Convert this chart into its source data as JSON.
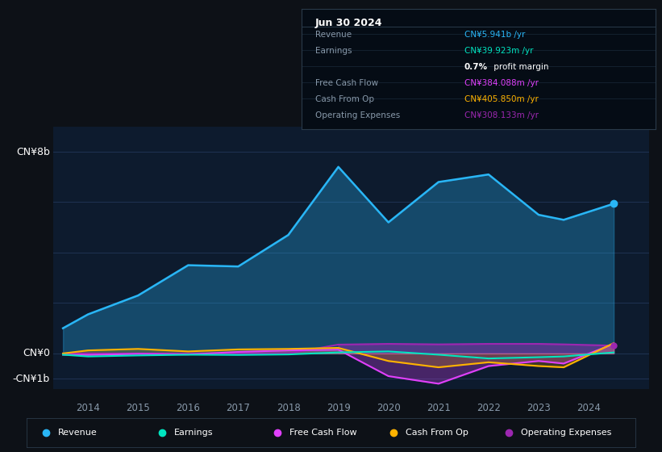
{
  "bg_color": "#0d1117",
  "plot_bg_color": "#0d1b2e",
  "grid_color": "#1e3050",
  "title_box_date": "Jun 30 2024",
  "ylabel_top": "CN¥8b",
  "ylabel_mid": "CN¥0",
  "ylabel_bot": "-CN¥1b",
  "xlabels": [
    "2014",
    "2015",
    "2016",
    "2017",
    "2018",
    "2019",
    "2020",
    "2021",
    "2022",
    "2023",
    "2024"
  ],
  "ylim": [
    -1400000000.0,
    9000000000.0
  ],
  "revenue": [
    1000000000.0,
    1550000000.0,
    2300000000.0,
    3500000000.0,
    3450000000.0,
    4700000000.0,
    7400000000.0,
    5200000000.0,
    6800000000.0,
    7100000000.0,
    5500000000.0,
    5300000000.0,
    5940000000.0
  ],
  "earnings": [
    -50000000.0,
    -120000000.0,
    -80000000.0,
    -50000000.0,
    -60000000.0,
    -40000000.0,
    40000000.0,
    80000000.0,
    -50000000.0,
    -200000000.0,
    -150000000.0,
    -120000000.0,
    40000000.0
  ],
  "free_cash_flow": [
    -50000000.0,
    -60000000.0,
    -20000000.0,
    -40000000.0,
    60000000.0,
    120000000.0,
    150000000.0,
    -900000000.0,
    -1200000000.0,
    -500000000.0,
    -300000000.0,
    -400000000.0,
    380000000.0
  ],
  "cash_from_op": [
    0.0,
    120000000.0,
    180000000.0,
    80000000.0,
    160000000.0,
    180000000.0,
    220000000.0,
    -300000000.0,
    -550000000.0,
    -350000000.0,
    -500000000.0,
    -550000000.0,
    410000000.0
  ],
  "op_expenses": [
    0.0,
    0.0,
    0.0,
    0.0,
    0.0,
    0.0,
    350000000.0,
    380000000.0,
    360000000.0,
    380000000.0,
    380000000.0,
    360000000.0,
    310000000.0
  ],
  "time_points": [
    2013.5,
    2014.0,
    2015.0,
    2016.0,
    2017.0,
    2018.0,
    2019.0,
    2020.0,
    2021.0,
    2022.0,
    2023.0,
    2023.5,
    2024.5
  ],
  "revenue_color": "#29b6f6",
  "earnings_color": "#00e5c0",
  "fcf_color": "#e040fb",
  "cfop_color": "#ffb300",
  "opex_color": "#9c27b0",
  "legend_items": [
    {
      "label": "Revenue",
      "color": "#29b6f6"
    },
    {
      "label": "Earnings",
      "color": "#00e5c0"
    },
    {
      "label": "Free Cash Flow",
      "color": "#e040fb"
    },
    {
      "label": "Cash From Op",
      "color": "#ffb300"
    },
    {
      "label": "Operating Expenses",
      "color": "#9c27b0"
    }
  ],
  "info_rows": [
    {
      "label": "Revenue",
      "value": "CN¥5.941b /yr",
      "value_color": "#29b6f6"
    },
    {
      "label": "Earnings",
      "value": "CN¥39.923m /yr",
      "value_color": "#00e5c0"
    },
    {
      "label": "",
      "value": "0.7% profit margin",
      "value_color": "#ffffff",
      "bold": "0.7%"
    },
    {
      "label": "Free Cash Flow",
      "value": "CN¥384.088m /yr",
      "value_color": "#e040fb"
    },
    {
      "label": "Cash From Op",
      "value": "CN¥405.850m /yr",
      "value_color": "#ffb300"
    },
    {
      "label": "Operating Expenses",
      "value": "CN¥308.133m /yr",
      "value_color": "#9c27b0"
    }
  ]
}
